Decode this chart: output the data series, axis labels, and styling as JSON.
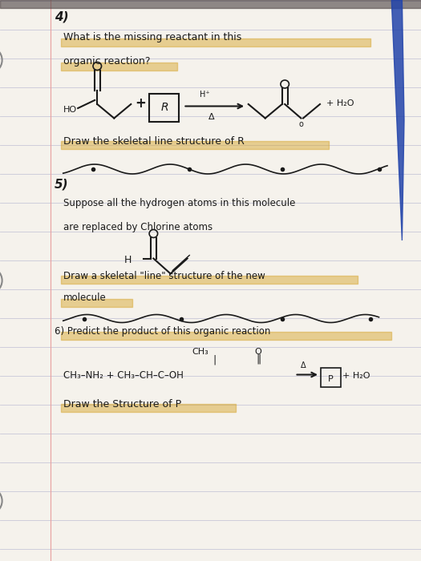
{
  "bg_color": "#d8d0c0",
  "page_color": "#f5f2ec",
  "line_color": "#c8c8d8",
  "text_color": "#1a1a1a",
  "highlight_color": "#d4a020",
  "title": "4)",
  "q4_line1": "What is the missing reactant in this",
  "q4_line2": "organic reaction?",
  "q4_sub": "Draw the skeletal line structure of R",
  "q5_title": "5)",
  "q5_line1": "Suppose all the hydrogen atoms in this molecule",
  "q5_line2": "are replaced by Chlorine atoms",
  "q5_sub": "Draw a skeletal \"line\" structure of the new",
  "q5_sub2": "molecule",
  "q6_title": "6) Predict the product of this organic reaction",
  "q6_rxn": "CH₃–NH₂ + CH₃–CH–C–OH  →  P + H₂O",
  "q6_sub": "Draw the Structure of P"
}
